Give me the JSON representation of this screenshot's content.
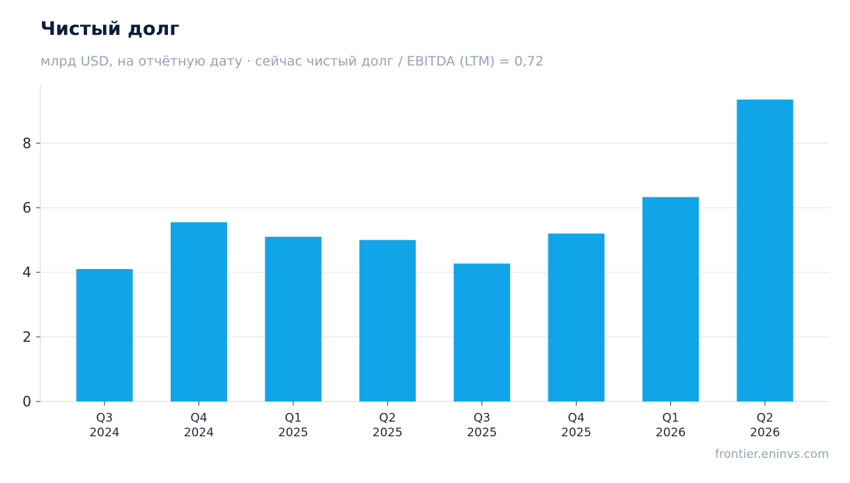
{
  "chart_data": {
    "type": "bar",
    "title": "Чистый долг",
    "subtitle": "млрд USD, на отчётную дату · сейчас чистый долг / EBITDA (LTM) = 0,72",
    "categories": [
      [
        "Q3",
        "2024"
      ],
      [
        "Q4",
        "2024"
      ],
      [
        "Q1",
        "2025"
      ],
      [
        "Q2",
        "2025"
      ],
      [
        "Q3",
        "2025"
      ],
      [
        "Q4",
        "2025"
      ],
      [
        "Q1",
        "2026"
      ],
      [
        "Q2",
        "2026"
      ]
    ],
    "values": [
      4.1,
      5.55,
      5.1,
      5.0,
      4.27,
      5.2,
      6.33,
      9.35
    ],
    "ylim": [
      0,
      9.8
    ],
    "yticks": [
      "0",
      "2",
      "4",
      "6",
      "8"
    ],
    "grid": "horizontal",
    "bar_color": "#10a5e8"
  },
  "footer": "frontier.eninvs.com"
}
